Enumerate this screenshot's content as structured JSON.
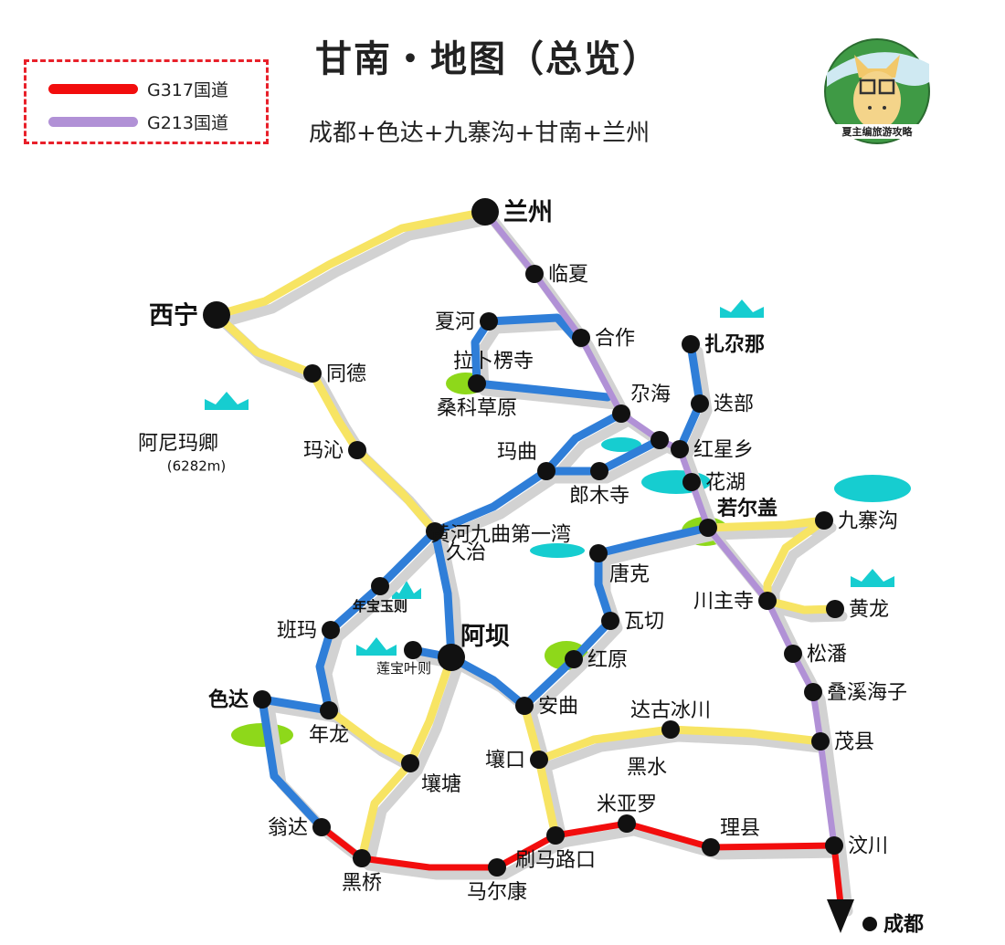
{
  "header": {
    "title": "甘南・地图（总览）",
    "subtitle": "成都+色达+九寨沟+甘南+兰州"
  },
  "legend": [
    {
      "label": "G317国道",
      "color": "#f20d0d"
    },
    {
      "label": "G213国道",
      "color": "#b191d6"
    }
  ],
  "logo": {
    "text": "夏主编旅游攻略"
  },
  "colors": {
    "yellow_road": "#f7e463",
    "blue_road": "#2f7ed8",
    "red_road": "#f20d0d",
    "purple_road": "#b191d6",
    "shadow": "#d2d2d2",
    "lake": "#16cdd0",
    "grass": "#8ed81a"
  },
  "places": [
    {
      "id": "lanzhou",
      "name": "兰州",
      "bold": true,
      "big": true
    },
    {
      "id": "linxia",
      "name": "临夏"
    },
    {
      "id": "hezuo",
      "name": "合作"
    },
    {
      "id": "xiahe",
      "name": "夏河"
    },
    {
      "id": "labuleng",
      "name": "拉卜楞寺",
      "label_only": true
    },
    {
      "id": "sangke",
      "name": "桑科草原"
    },
    {
      "id": "gahai",
      "name": "尕海"
    },
    {
      "id": "junction",
      "name": ""
    },
    {
      "id": "hongxing",
      "name": "红星乡"
    },
    {
      "id": "diebu",
      "name": "迭部"
    },
    {
      "id": "zhagana",
      "name": "扎尕那",
      "bold": true
    },
    {
      "id": "huahu",
      "name": "花湖"
    },
    {
      "id": "ruoergai",
      "name": "若尔盖",
      "bold": true
    },
    {
      "id": "jiuzhaigou",
      "name": "九寨沟"
    },
    {
      "id": "chuanzhusi",
      "name": "川主寺"
    },
    {
      "id": "huanglong",
      "name": "黄龙"
    },
    {
      "id": "songpan",
      "name": "松潘"
    },
    {
      "id": "diexi",
      "name": "叠溪海子"
    },
    {
      "id": "maoxian",
      "name": "茂县"
    },
    {
      "id": "wenchuan",
      "name": "汶川"
    },
    {
      "id": "chengdu",
      "name": "成都",
      "bold": true
    },
    {
      "id": "maqu",
      "name": "玛曲"
    },
    {
      "id": "langmusi",
      "name": "郎木寺"
    },
    {
      "id": "jiuzhi",
      "name": "久治"
    },
    {
      "id": "nianbao",
      "name": "年宝玉则",
      "bold": true,
      "small": true
    },
    {
      "id": "banma",
      "name": "班玛"
    },
    {
      "id": "aba",
      "name": "阿坝",
      "bold": true,
      "big": true
    },
    {
      "id": "lianbao",
      "name": "莲宝叶则",
      "small": true
    },
    {
      "id": "seda",
      "name": "色达",
      "bold": true
    },
    {
      "id": "nianlong",
      "name": "年龙"
    },
    {
      "id": "rangtang",
      "name": "壤塘"
    },
    {
      "id": "anqu",
      "name": "安曲"
    },
    {
      "id": "hongyuan",
      "name": "红原"
    },
    {
      "id": "waqie",
      "name": "瓦切"
    },
    {
      "id": "tangke",
      "name": "唐克"
    },
    {
      "id": "huanghe",
      "name": "黄河九曲第一湾",
      "label_only": true
    },
    {
      "id": "rangkou",
      "name": "壤口"
    },
    {
      "id": "dagu",
      "name": "达古冰川"
    },
    {
      "id": "heishui",
      "name": "黑水",
      "label_only": true
    },
    {
      "id": "shuama",
      "name": "刷马路口"
    },
    {
      "id": "miyaluo",
      "name": "米亚罗"
    },
    {
      "id": "lixian",
      "name": "理县"
    },
    {
      "id": "maerkang",
      "name": "马尔康"
    },
    {
      "id": "heiqiao",
      "name": "黑桥"
    },
    {
      "id": "wengda",
      "name": "翁达"
    },
    {
      "id": "xining",
      "name": "西宁",
      "bold": true,
      "big": true
    },
    {
      "id": "tongde",
      "name": "同德"
    },
    {
      "id": "maqin",
      "name": "玛沁"
    },
    {
      "id": "anyemaqen",
      "name": "阿尼玛卿",
      "label_only": true
    },
    {
      "id": "anyemaqen_h",
      "name": "(6282m)",
      "label_only": true,
      "small": true
    }
  ]
}
